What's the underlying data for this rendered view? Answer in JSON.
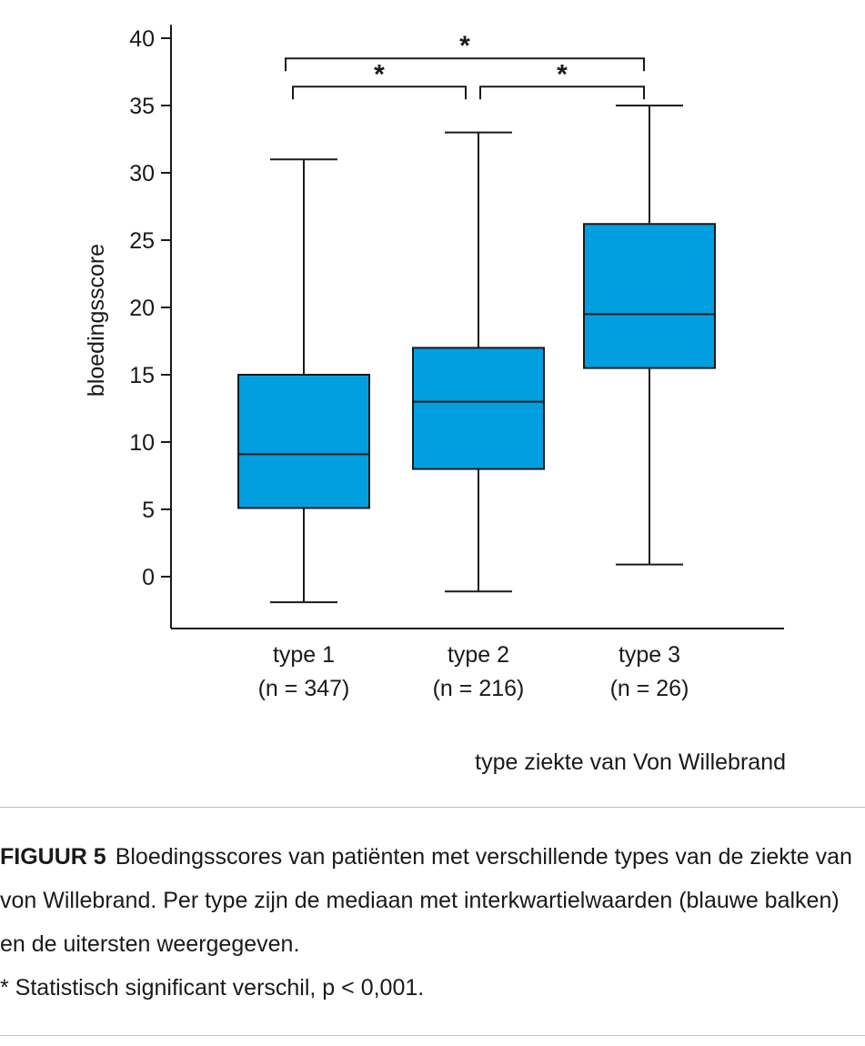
{
  "chart_data": {
    "type": "box",
    "ylabel": "bloedingsscore",
    "xlabel": "type ziekte van Von Willebrand",
    "ylim": [
      -4,
      41
    ],
    "yticks": [
      0,
      5,
      10,
      15,
      20,
      25,
      30,
      35,
      40
    ],
    "categories": [
      {
        "label": "type 1",
        "n_label": "(n = 347)"
      },
      {
        "label": "type 2",
        "n_label": "(n = 216)"
      },
      {
        "label": "type 3",
        "n_label": "(n = 26)"
      }
    ],
    "boxes": [
      {
        "min": -1.9,
        "q1": 5.1,
        "median": 9.1,
        "q3": 15.0,
        "max": 31.0
      },
      {
        "min": -1.1,
        "q1": 8.0,
        "median": 13.0,
        "q3": 17.0,
        "max": 33.0
      },
      {
        "min": 0.9,
        "q1": 15.5,
        "median": 19.5,
        "q3": 26.2,
        "max": 35.0
      }
    ],
    "box_color": "#009fe0",
    "significance": [
      {
        "from": 0,
        "to": 2,
        "y": 38.5,
        "symbol": "*"
      },
      {
        "from": 0,
        "to": 1,
        "y": 36.4,
        "symbol": "*"
      },
      {
        "from": 1,
        "to": 2,
        "y": 36.4,
        "symbol": "*"
      }
    ]
  },
  "caption": {
    "figure_label": "FIGUUR 5",
    "text": "Bloedingsscores van patiënten met verschillende types van de ziekte van von Willebrand. Per type zijn de mediaan met interkwartielwaarden (blauwe balken) en de uitersten weergegeven.",
    "footnote": "* Statistisch significant verschil, p < 0,001."
  }
}
